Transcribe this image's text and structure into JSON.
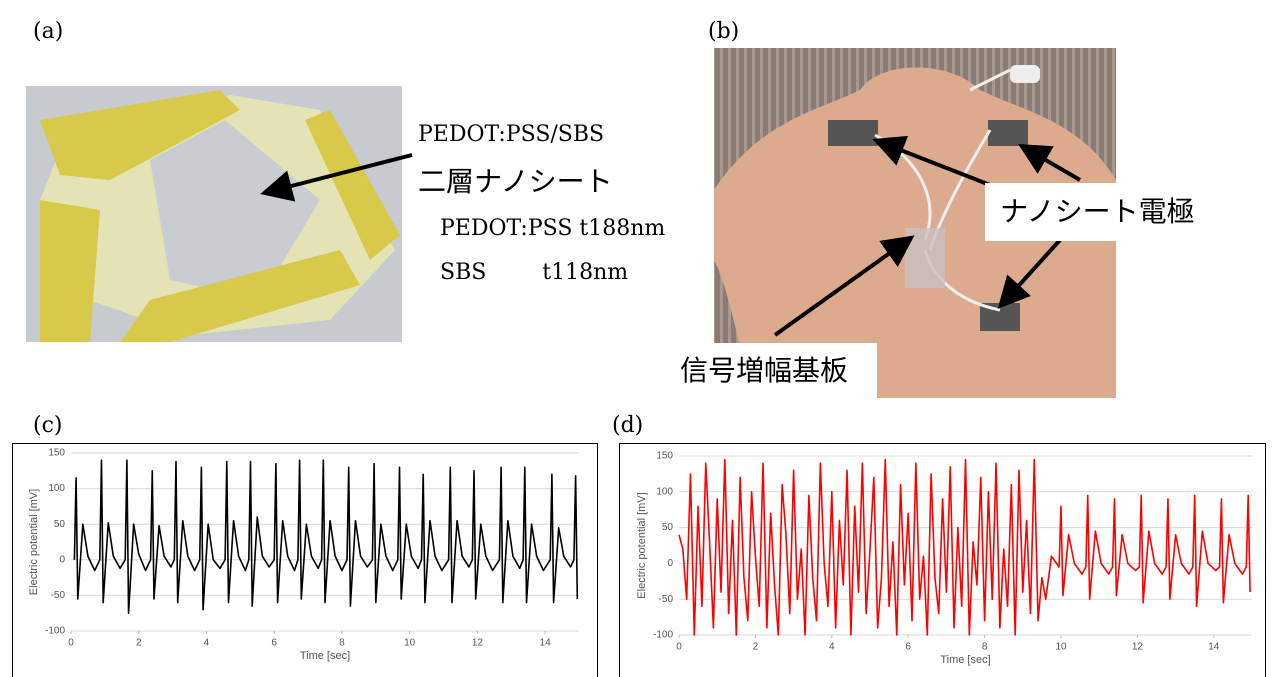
{
  "labels": {
    "a": "(a)",
    "b": "(b)",
    "c": "(c)",
    "d": "(d)"
  },
  "annotations": {
    "a_line1": "PEDOT:PSS/SBS",
    "a_line2": "二層ナノシート",
    "a_line3": "PEDOT:PSS t188nm",
    "a_line4": "SBS        t118nm",
    "b_electrode": "ナノシート電極",
    "b_board": "信号増幅基板"
  },
  "chart_data": [
    {
      "type": "line",
      "x_label": "Time [sec]",
      "y_label": "Electric potential [mV]",
      "xlim": [
        0,
        15
      ],
      "ylim": [
        -100,
        150
      ],
      "xticks": [
        0,
        2,
        4,
        6,
        8,
        10,
        12,
        14
      ],
      "yticks": [
        -100,
        -50,
        0,
        50,
        100,
        150
      ],
      "grid": true,
      "x": [
        0.1,
        0.15,
        0.2,
        0.35,
        0.5,
        0.7,
        0.85,
        0.9,
        0.95,
        1.1,
        1.25,
        1.45,
        1.6,
        1.65,
        1.7,
        1.85,
        2.0,
        2.2,
        2.35,
        2.4,
        2.45,
        2.6,
        2.75,
        2.95,
        3.05,
        3.1,
        3.15,
        3.3,
        3.45,
        3.65,
        3.8,
        3.85,
        3.9,
        4.05,
        4.2,
        4.4,
        4.55,
        4.6,
        4.65,
        4.8,
        4.95,
        5.15,
        5.25,
        5.3,
        5.35,
        5.5,
        5.65,
        5.85,
        6.0,
        6.05,
        6.1,
        6.25,
        6.4,
        6.6,
        6.7,
        6.75,
        6.8,
        6.95,
        7.1,
        7.3,
        7.4,
        7.45,
        7.5,
        7.65,
        7.8,
        8.0,
        8.15,
        8.2,
        8.25,
        8.4,
        8.55,
        8.75,
        8.9,
        8.95,
        9.0,
        9.15,
        9.3,
        9.5,
        9.65,
        9.7,
        9.75,
        9.9,
        10.05,
        10.25,
        10.35,
        10.4,
        10.45,
        10.6,
        10.75,
        10.95,
        11.15,
        11.2,
        11.25,
        11.4,
        11.55,
        11.75,
        11.85,
        11.9,
        11.95,
        12.1,
        12.25,
        12.45,
        12.65,
        12.7,
        12.75,
        12.9,
        13.05,
        13.25,
        13.35,
        13.4,
        13.45,
        13.6,
        13.75,
        13.95,
        14.15,
        14.2,
        14.25,
        14.4,
        14.55,
        14.75,
        14.85,
        14.9,
        14.95
      ],
      "series": [
        {
          "color": "#000000",
          "values": [
            0,
            115,
            -55,
            50,
            5,
            -15,
            0,
            140,
            -60,
            52,
            5,
            -12,
            0,
            140,
            -75,
            50,
            8,
            -15,
            0,
            125,
            -55,
            48,
            5,
            -10,
            0,
            138,
            -60,
            55,
            5,
            -15,
            0,
            130,
            -70,
            50,
            0,
            -12,
            0,
            138,
            -60,
            55,
            5,
            -15,
            0,
            138,
            -65,
            60,
            5,
            -10,
            0,
            135,
            -60,
            55,
            5,
            -15,
            0,
            140,
            -55,
            50,
            5,
            -12,
            0,
            140,
            -60,
            55,
            5,
            -15,
            0,
            130,
            -65,
            55,
            5,
            -10,
            0,
            135,
            -60,
            50,
            5,
            -15,
            0,
            130,
            -55,
            50,
            5,
            -12,
            0,
            120,
            -60,
            55,
            5,
            -15,
            0,
            130,
            -60,
            55,
            5,
            -10,
            0,
            125,
            -55,
            50,
            5,
            -15,
            0,
            130,
            -60,
            55,
            5,
            -12,
            0,
            130,
            -60,
            50,
            5,
            -15,
            0,
            120,
            -60,
            45,
            5,
            -10,
            0,
            118,
            -55
          ]
        }
      ]
    },
    {
      "type": "line",
      "x_label": "Time [sec]",
      "y_label": "Electric potential [mV]",
      "xlim": [
        0,
        15
      ],
      "ylim": [
        -100,
        150
      ],
      "xticks": [
        0,
        2,
        4,
        6,
        8,
        10,
        12,
        14
      ],
      "yticks": [
        -100,
        -50,
        0,
        50,
        100,
        150
      ],
      "grid": true,
      "x": [
        0,
        0.1,
        0.2,
        0.3,
        0.4,
        0.5,
        0.6,
        0.7,
        0.8,
        0.9,
        1,
        1.1,
        1.2,
        1.3,
        1.4,
        1.5,
        1.6,
        1.7,
        1.8,
        1.9,
        2,
        2.1,
        2.2,
        2.3,
        2.4,
        2.5,
        2.6,
        2.7,
        2.8,
        2.9,
        3,
        3.1,
        3.2,
        3.3,
        3.4,
        3.5,
        3.6,
        3.7,
        3.8,
        3.9,
        4,
        4.1,
        4.2,
        4.3,
        4.4,
        4.5,
        4.6,
        4.7,
        4.8,
        4.9,
        5,
        5.1,
        5.2,
        5.3,
        5.4,
        5.5,
        5.6,
        5.7,
        5.8,
        5.9,
        6,
        6.1,
        6.2,
        6.3,
        6.4,
        6.5,
        6.6,
        6.7,
        6.8,
        6.9,
        7,
        7.1,
        7.2,
        7.3,
        7.4,
        7.5,
        7.6,
        7.7,
        7.8,
        7.9,
        8,
        8.1,
        8.2,
        8.3,
        8.4,
        8.5,
        8.6,
        8.7,
        8.8,
        8.9,
        9,
        9.1,
        9.2,
        9.3,
        9.4,
        9.5,
        9.6,
        9.75,
        9.95,
        10.0,
        10.05,
        10.2,
        10.35,
        10.55,
        10.65,
        10.7,
        10.75,
        10.9,
        11.05,
        11.25,
        11.35,
        11.4,
        11.45,
        11.6,
        11.75,
        11.95,
        12.05,
        12.1,
        12.15,
        12.3,
        12.45,
        12.65,
        12.75,
        12.8,
        12.85,
        13.0,
        13.15,
        13.35,
        13.45,
        13.5,
        13.55,
        13.7,
        13.85,
        14.05,
        14.15,
        14.2,
        14.25,
        14.4,
        14.55,
        14.75,
        14.85,
        14.9,
        14.95
      ],
      "series": [
        {
          "color": "#ff0000",
          "values": [
            40,
            20,
            -50,
            125,
            -100,
            80,
            -60,
            140,
            30,
            -90,
            90,
            -40,
            145,
            -70,
            60,
            -100,
            120,
            -20,
            -80,
            100,
            10,
            -60,
            140,
            -90,
            70,
            -30,
            -100,
            110,
            40,
            -70,
            130,
            -50,
            20,
            -100,
            95,
            -20,
            -80,
            140,
            0,
            -60,
            100,
            -90,
            60,
            -30,
            130,
            -100,
            80,
            -40,
            140,
            -70,
            20,
            120,
            -90,
            -20,
            145,
            -60,
            30,
            -100,
            110,
            -30,
            70,
            -80,
            140,
            -50,
            10,
            -100,
            125,
            -20,
            -70,
            90,
            -40,
            135,
            -90,
            50,
            -60,
            145,
            -100,
            30,
            -30,
            120,
            -80,
            100,
            -50,
            140,
            -90,
            20,
            -60,
            110,
            -100,
            130,
            -40,
            60,
            -70,
            145,
            -80,
            -20,
            -50,
            10,
            -5,
            80,
            -45,
            40,
            0,
            -15,
            -5,
            95,
            -50,
            45,
            0,
            -15,
            -5,
            90,
            -45,
            40,
            0,
            -10,
            -5,
            95,
            -55,
            45,
            0,
            -15,
            -5,
            90,
            -50,
            40,
            0,
            -15,
            -5,
            95,
            -60,
            45,
            0,
            -10,
            -5,
            90,
            -55,
            40,
            0,
            -15,
            -5,
            95,
            -40
          ]
        }
      ]
    }
  ]
}
